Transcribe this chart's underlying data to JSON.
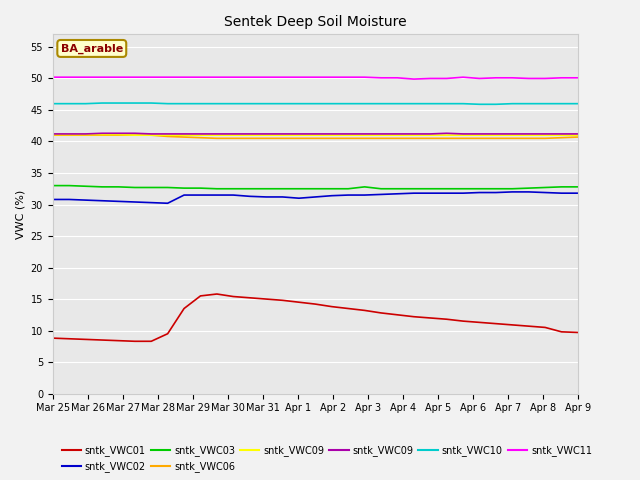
{
  "title": "Sentek Deep Soil Moisture",
  "ylabel": "VWC (%)",
  "ylim": [
    0,
    57
  ],
  "yticks": [
    0,
    5,
    10,
    15,
    20,
    25,
    30,
    35,
    40,
    45,
    50,
    55
  ],
  "annotation": "BA_arable",
  "x_labels": [
    "Mar 25",
    "Mar 26",
    "Mar 27",
    "Mar 28",
    "Mar 29",
    "Mar 30",
    "Mar 31",
    "Apr 1",
    "Apr 2",
    "Apr 3",
    "Apr 4",
    "Apr 5",
    "Apr 6",
    "Apr 7",
    "Apr 8",
    "Apr 9"
  ],
  "fig_bg": "#f2f2f2",
  "plot_bg": "#e8e8e8",
  "series": [
    {
      "label": "sntk_VWC01",
      "color": "#cc0000",
      "lw": 1.2,
      "values": [
        8.8,
        8.7,
        8.6,
        8.5,
        8.4,
        8.3,
        8.3,
        9.5,
        13.5,
        15.5,
        15.8,
        15.4,
        15.2,
        15.0,
        14.8,
        14.5,
        14.2,
        13.8,
        13.5,
        13.2,
        12.8,
        12.5,
        12.2,
        12.0,
        11.8,
        11.5,
        11.3,
        11.1,
        10.9,
        10.7,
        10.5,
        9.8,
        9.7
      ]
    },
    {
      "label": "sntk_VWC02",
      "color": "#0000cc",
      "lw": 1.2,
      "values": [
        30.8,
        30.8,
        30.7,
        30.6,
        30.5,
        30.4,
        30.3,
        30.2,
        31.5,
        31.5,
        31.5,
        31.5,
        31.3,
        31.2,
        31.2,
        31.0,
        31.2,
        31.4,
        31.5,
        31.5,
        31.6,
        31.7,
        31.8,
        31.8,
        31.8,
        31.8,
        31.9,
        31.9,
        32.0,
        32.0,
        31.9,
        31.8,
        31.8
      ]
    },
    {
      "label": "sntk_VWC03",
      "color": "#00cc00",
      "lw": 1.2,
      "values": [
        33.0,
        33.0,
        32.9,
        32.8,
        32.8,
        32.7,
        32.7,
        32.7,
        32.6,
        32.6,
        32.5,
        32.5,
        32.5,
        32.5,
        32.5,
        32.5,
        32.5,
        32.5,
        32.5,
        32.8,
        32.5,
        32.5,
        32.5,
        32.5,
        32.5,
        32.5,
        32.5,
        32.5,
        32.5,
        32.6,
        32.7,
        32.8,
        32.8
      ]
    },
    {
      "label": "sntk_VWC06",
      "color": "#ffaa00",
      "lw": 1.2,
      "values": [
        41.0,
        41.0,
        41.0,
        41.0,
        41.0,
        41.0,
        41.0,
        40.8,
        40.7,
        40.6,
        40.5,
        40.5,
        40.5,
        40.5,
        40.5,
        40.5,
        40.5,
        40.5,
        40.5,
        40.5,
        40.5,
        40.5,
        40.5,
        40.5,
        40.5,
        40.5,
        40.5,
        40.5,
        40.5,
        40.5,
        40.5,
        40.6,
        40.7
      ]
    },
    {
      "label": "sntk_VWC09",
      "color": "#ffff00",
      "lw": 1.2,
      "values": [
        41.1,
        41.1,
        41.1,
        41.1,
        41.1,
        41.0,
        41.0,
        41.0,
        41.0,
        41.0,
        41.0,
        41.0,
        41.0,
        41.0,
        41.0,
        41.0,
        41.0,
        41.0,
        41.0,
        41.0,
        41.0,
        41.0,
        41.0,
        41.0,
        41.0,
        41.0,
        41.0,
        41.0,
        41.0,
        41.0,
        41.0,
        41.0,
        41.0
      ]
    },
    {
      "label": "sntk_VWC09",
      "color": "#aa00aa",
      "lw": 1.2,
      "values": [
        41.2,
        41.2,
        41.2,
        41.3,
        41.3,
        41.3,
        41.2,
        41.2,
        41.2,
        41.2,
        41.2,
        41.2,
        41.2,
        41.2,
        41.2,
        41.2,
        41.2,
        41.2,
        41.2,
        41.2,
        41.2,
        41.2,
        41.2,
        41.2,
        41.3,
        41.2,
        41.2,
        41.2,
        41.2,
        41.2,
        41.2,
        41.2,
        41.2
      ]
    },
    {
      "label": "sntk_VWC10",
      "color": "#00cccc",
      "lw": 1.2,
      "values": [
        46.0,
        46.0,
        46.0,
        46.1,
        46.1,
        46.1,
        46.1,
        46.0,
        46.0,
        46.0,
        46.0,
        46.0,
        46.0,
        46.0,
        46.0,
        46.0,
        46.0,
        46.0,
        46.0,
        46.0,
        46.0,
        46.0,
        46.0,
        46.0,
        46.0,
        46.0,
        45.9,
        45.9,
        46.0,
        46.0,
        46.0,
        46.0,
        46.0
      ]
    },
    {
      "label": "sntk_VWC11",
      "color": "#ff00ff",
      "lw": 1.2,
      "values": [
        50.2,
        50.2,
        50.2,
        50.2,
        50.2,
        50.2,
        50.2,
        50.2,
        50.2,
        50.2,
        50.2,
        50.2,
        50.2,
        50.2,
        50.2,
        50.2,
        50.2,
        50.2,
        50.2,
        50.2,
        50.1,
        50.1,
        49.9,
        50.0,
        50.0,
        50.2,
        50.0,
        50.1,
        50.1,
        50.0,
        50.0,
        50.1,
        50.1
      ]
    }
  ]
}
